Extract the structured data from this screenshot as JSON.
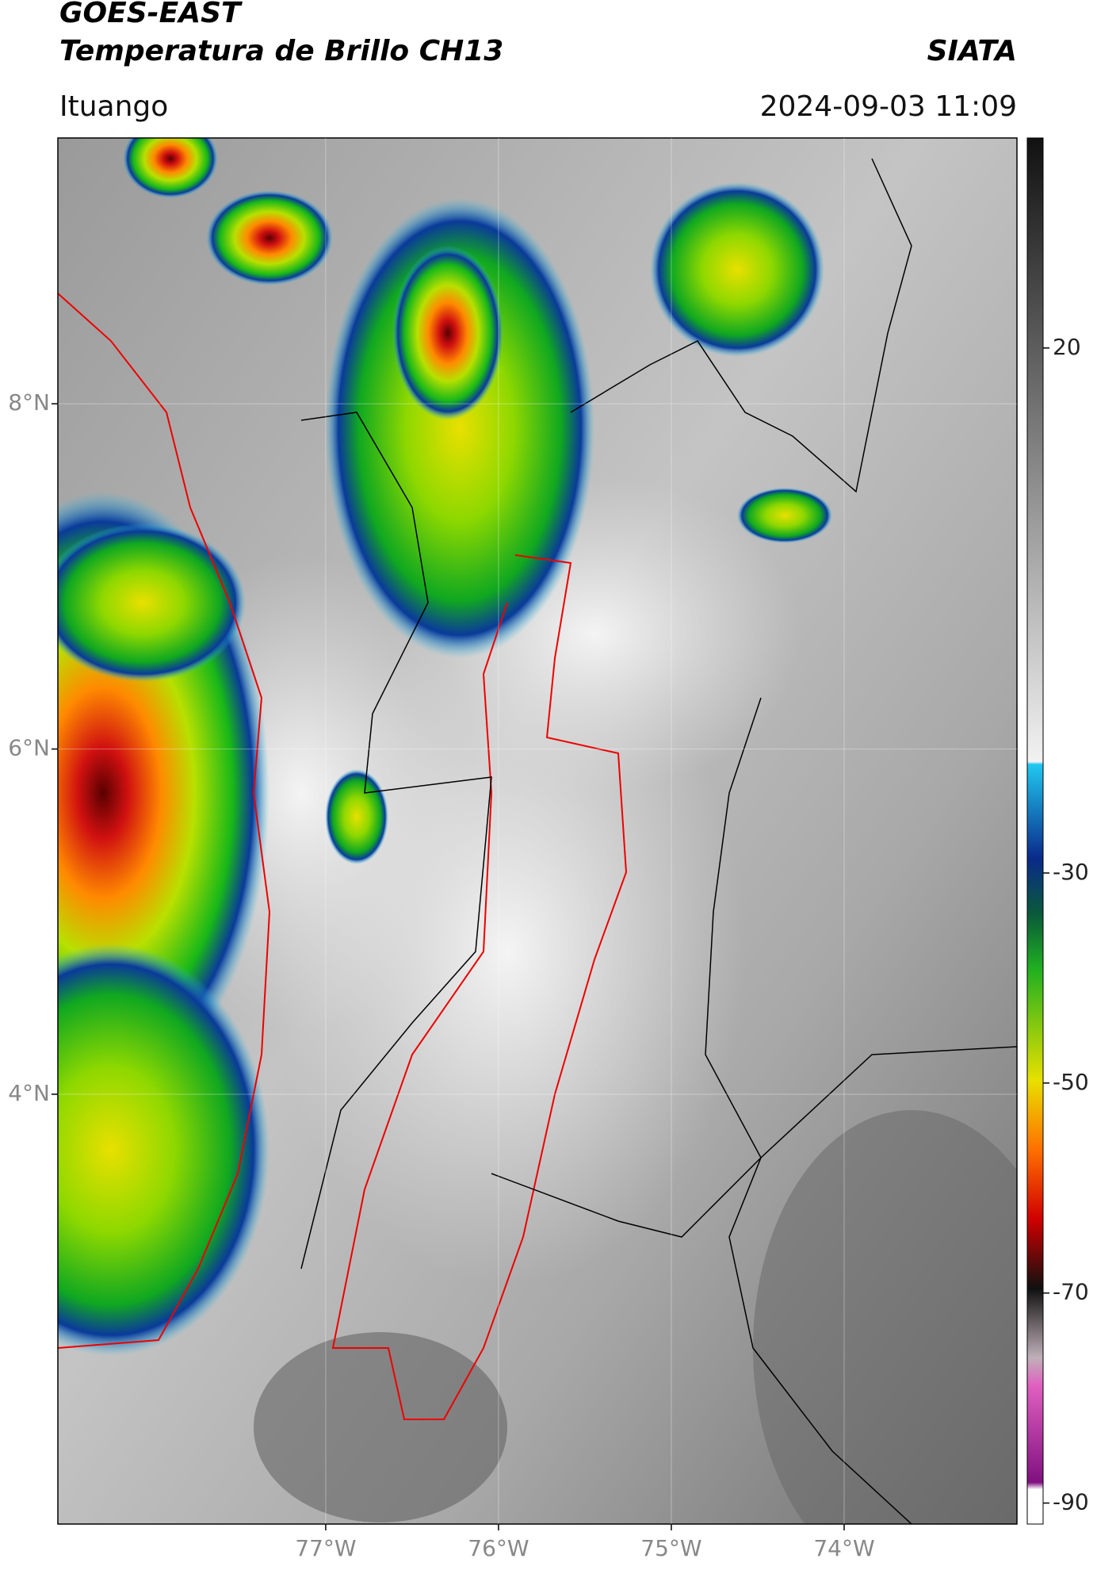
{
  "header": {
    "title": "GOES-EAST",
    "subtitle": "Temperatura de Brillo CH13",
    "source": "SIATA",
    "location": "Ituango",
    "datetime": "2024-09-03 11:09"
  },
  "map": {
    "lat_lim": [
      1.51,
      9.54
    ],
    "lon_lim": [
      -78.55,
      -73.0
    ],
    "grid": true,
    "lat_ticks": [
      {
        "value": 8,
        "label": "8°N"
      },
      {
        "value": 6,
        "label": "6°N"
      },
      {
        "value": 4,
        "label": "4°N"
      }
    ],
    "lon_ticks": [
      {
        "value": -77,
        "label": "77°W"
      },
      {
        "value": -76,
        "label": "76°W"
      },
      {
        "value": -75,
        "label": "75°W"
      },
      {
        "value": -74,
        "label": "74°W"
      }
    ]
  },
  "colorbar": {
    "lim": [
      -92,
      40
    ],
    "ticks": [
      20,
      -30,
      -50,
      -70,
      -90
    ]
  }
}
